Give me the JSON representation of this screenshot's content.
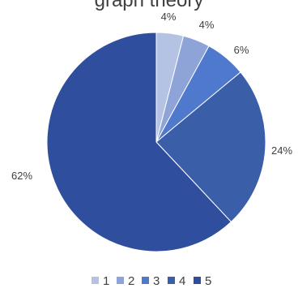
{
  "chart_data": {
    "type": "pie",
    "title": "graph theory",
    "categories": [
      "1",
      "2",
      "3",
      "4",
      "5"
    ],
    "values": [
      4,
      4,
      6,
      24,
      62
    ],
    "data_labels": [
      "4%",
      "4%",
      "6%",
      "24%",
      "62%"
    ],
    "colors": [
      "#b4c2e4",
      "#8ea3d7",
      "#4f79cd",
      "#3b5ea8",
      "#2f4f9e"
    ],
    "legend_position": "bottom"
  }
}
